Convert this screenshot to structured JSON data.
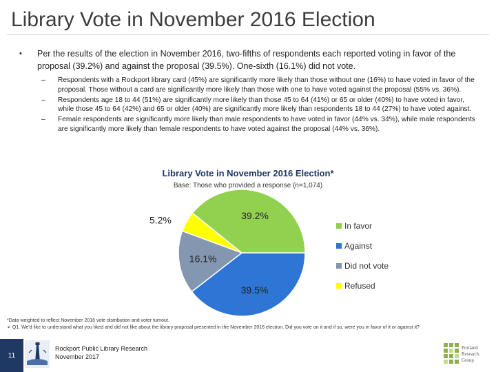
{
  "slide": {
    "title": "Library Vote in November 2016 Election",
    "bullet": "Per the results of the election in November 2016, two-fifths of respondents each reported voting in favor of the proposal (39.2%) and against the proposal (39.5%). One-sixth (16.1%) did not vote.",
    "subbullets": [
      "Respondents with a Rockport library card (45%) are significantly more likely than those without one (16%) to have voted in favor of the proposal. Those without a card are significantly more likely than those with one to have voted against the proposal (55% vs. 36%).",
      "Respondents age 18 to 44 (51%) are significantly more likely than those 45 to 64 (41%) or 65 or older (40%) to have voted in favor, while those 45 to 64 (42%) and 65 or older (40%) are significantly more likely than respondents 18 to 44 (27%) to have voted against.",
      "Female respondents are significantly more likely than male respondents to have voted in favor (44% vs. 34%), while male respondents are significantly more likely than female respondents to have voted against the proposal (44% vs. 36%)."
    ],
    "footnote_line1": "*Data weighted to reflect November 2016 vote distribution and voter turnout.",
    "footnote_line2": "Q1. We'd like to understand what you liked and did not like about the library proposal presented in the November 2016 election. Did you vote on it and if so, were you in favor of it or against it?",
    "footnote_arrow": "➢",
    "page_number": "11",
    "footer_line1": "Rockport Public Library Research",
    "footer_line2": "November 2017",
    "logo_text": [
      "Portland",
      "Research",
      "Group"
    ]
  },
  "chart_data": {
    "type": "pie",
    "title": "Library Vote in November 2016 Election*",
    "subtitle": "Base: Those who provided a response (n=1,074)",
    "slices": [
      {
        "label": "In favor",
        "value": 39.2,
        "display": "39.2%",
        "color": "#92d050"
      },
      {
        "label": "Against",
        "value": 39.5,
        "display": "39.5%",
        "color": "#2e75d6"
      },
      {
        "label": "Did not vote",
        "value": 16.1,
        "display": "16.1%",
        "color": "#8497b0"
      },
      {
        "label": "Refused",
        "value": 5.2,
        "display": "5.2%",
        "color": "#ffff00"
      }
    ],
    "legend_position": "right"
  }
}
